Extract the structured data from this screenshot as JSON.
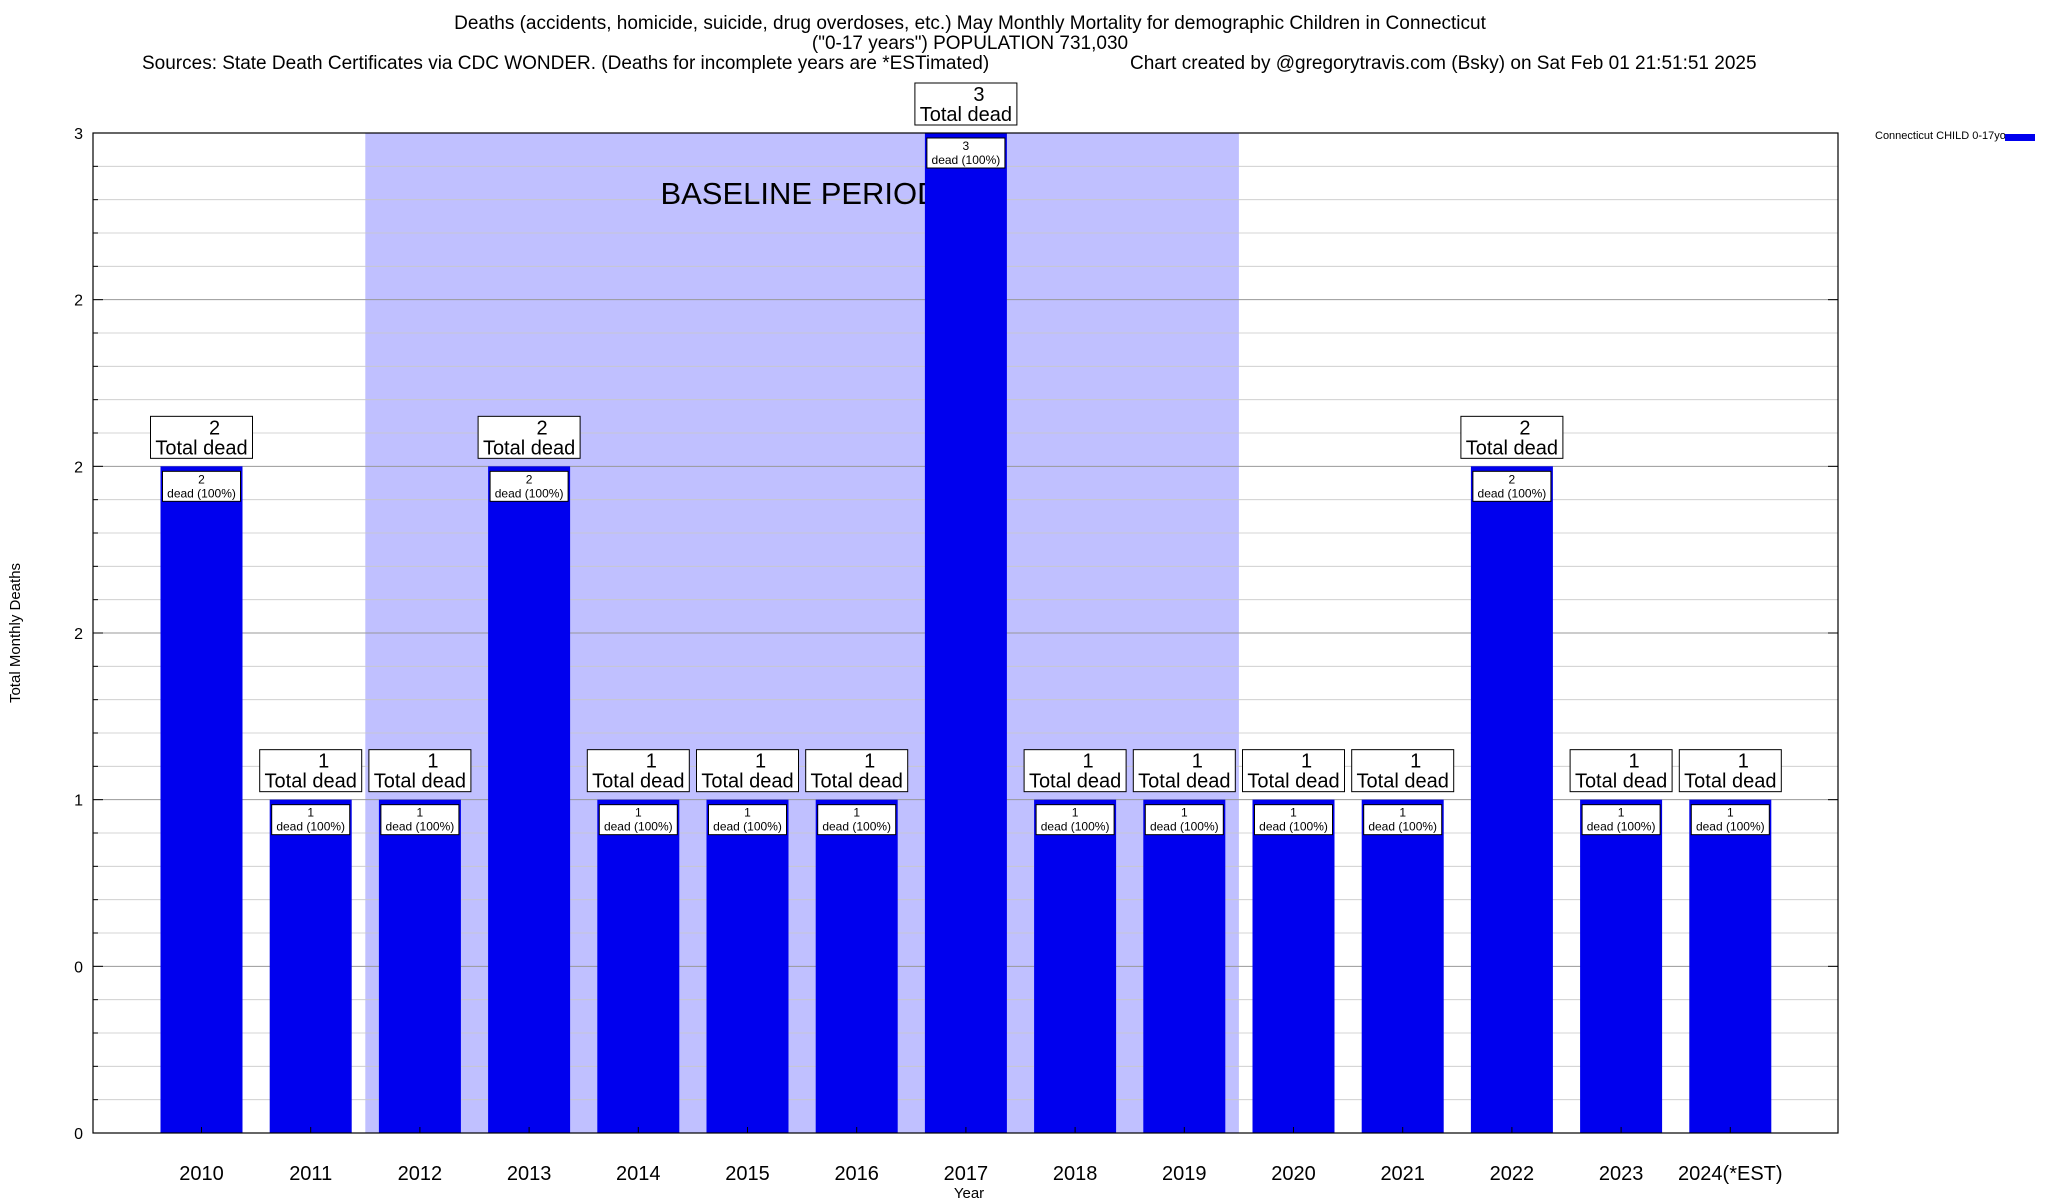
{
  "header": {
    "title_line1": "Deaths (accidents, homicide, suicide, drug overdoses, etc.) May Monthly Mortality for demographic Children in Connecticut",
    "title_line2": "(\"0-17 years\") POPULATION 731,030",
    "sources": "Sources: State Death Certificates via CDC WONDER. (Deaths for incomplete years are *ESTimated)",
    "credit": "Chart created by @gregorytravis.com (Bsky) on Sat Feb 01 21:51:51 2025"
  },
  "legend": {
    "label": "Connecticut CHILD 0-17yo",
    "color": "#0000ee",
    "position": "top-right"
  },
  "chart_data": {
    "type": "bar",
    "xlabel": "Year",
    "ylabel": "Total Monthly Deaths",
    "ylim": [
      0,
      3
    ],
    "y_ticks": [
      0,
      0.5,
      1,
      1.5,
      2,
      2.5,
      3
    ],
    "y_tick_labels": [
      "0",
      "0",
      "1",
      "2",
      "2",
      "2",
      "3"
    ],
    "grid": true,
    "categories": [
      "2010",
      "2011",
      "2012",
      "2013",
      "2014",
      "2015",
      "2016",
      "2017",
      "2018",
      "2019",
      "2020",
      "2021",
      "2022",
      "2023",
      "2024(*EST)"
    ],
    "series": [
      {
        "name": "Connecticut CHILD 0-17yo",
        "values": [
          2,
          1,
          1,
          2,
          1,
          1,
          1,
          3,
          1,
          1,
          1,
          1,
          2,
          1,
          1
        ]
      }
    ],
    "total_label_text": "Total dead",
    "inner_label_text": "dead (100%)",
    "bar_color": "#0000ee",
    "baseline_period": {
      "label": "BASELINE PERIOD",
      "start_category": "2012",
      "end_category": "2019",
      "color": "#c0c0ff"
    }
  }
}
